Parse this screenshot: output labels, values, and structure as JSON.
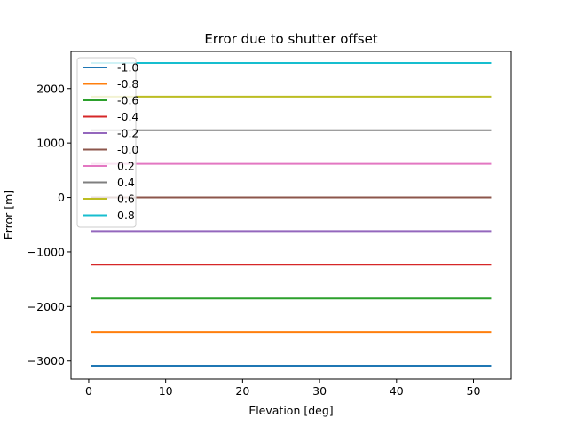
{
  "chart_data": {
    "type": "line",
    "title": "Error due to shutter offset",
    "xlabel": "Elevation [deg]",
    "ylabel": "Error [m]",
    "x": [
      0.3,
      52.3
    ],
    "xlim": [
      -2.3,
      54.9
    ],
    "ylim": [
      -3330,
      2680
    ],
    "xticks": [
      0,
      10,
      20,
      30,
      40,
      50
    ],
    "yticks": [
      -3000,
      -2000,
      -1000,
      0,
      1000,
      2000
    ],
    "xtick_labels": [
      "0",
      "10",
      "20",
      "30",
      "40",
      "50"
    ],
    "ytick_labels": [
      "−3000",
      "−2000",
      "−1000",
      "0",
      "1000",
      "2000"
    ],
    "grid": false,
    "legend_position": "top-left",
    "series": [
      {
        "name": "-1.0",
        "color": "#1f77b4",
        "values": [
          -3085,
          -3085
        ]
      },
      {
        "name": "-0.8",
        "color": "#ff7f0e",
        "values": [
          -2468,
          -2468
        ]
      },
      {
        "name": "-0.6",
        "color": "#2ca02c",
        "values": [
          -1851,
          -1851
        ]
      },
      {
        "name": "-0.4",
        "color": "#d62728",
        "values": [
          -1234,
          -1234
        ]
      },
      {
        "name": "-0.2",
        "color": "#9467bd",
        "values": [
          -617,
          -617
        ]
      },
      {
        "name": "-0.0",
        "color": "#8c564b",
        "values": [
          0,
          0
        ]
      },
      {
        "name": "0.2",
        "color": "#e377c2",
        "values": [
          617,
          617
        ]
      },
      {
        "name": "0.4",
        "color": "#7f7f7f",
        "values": [
          1234,
          1234
        ]
      },
      {
        "name": "0.6",
        "color": "#bcbd22",
        "values": [
          1851,
          1851
        ]
      },
      {
        "name": "0.8",
        "color": "#17becf",
        "values": [
          2468,
          2468
        ]
      }
    ]
  }
}
